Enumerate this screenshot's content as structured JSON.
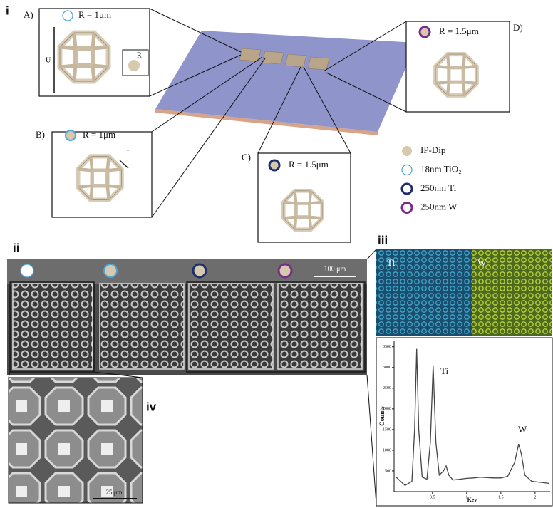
{
  "panel_i": {
    "label": "i",
    "insets": [
      {
        "letter": "A)",
        "radius": "R = 1μm"
      },
      {
        "letter": "B)",
        "radius": "R = 1μm"
      },
      {
        "letter": "C)",
        "radius": "R = 1.5μm"
      },
      {
        "letter": "D)",
        "radius": "R = 1.5μm"
      }
    ],
    "dimension_labels": [
      "U",
      "R",
      "L"
    ],
    "legend": [
      "IP-Dip",
      "18nm TiO₂",
      "250nm Ti",
      "250nm W"
    ]
  },
  "panel_ii": {
    "label": "ii",
    "scale_bar": "100 μm"
  },
  "panel_iii": {
    "label": "iii",
    "map_labels": [
      "Ti",
      "W"
    ]
  },
  "panel_iv": {
    "label": "iv",
    "scale_bar": "25 μm"
  },
  "chart_data": {
    "type": "line",
    "x_label": "Kev",
    "y_label": "Counts",
    "annotations": [
      "Ti",
      "W"
    ],
    "color": "#444444",
    "x": [
      -0.03,
      0.1,
      0.2,
      0.24,
      0.27,
      0.3,
      0.35,
      0.42,
      0.47,
      0.51,
      0.55,
      0.6,
      0.66,
      0.7,
      0.74,
      0.8,
      0.9,
      1.0,
      1.1,
      1.2,
      1.3,
      1.4,
      1.5,
      1.6,
      1.7,
      1.76,
      1.8,
      1.85,
      1.95,
      2.05,
      2.2
    ],
    "values": [
      350,
      150,
      250,
      1500,
      3450,
      1500,
      350,
      300,
      1200,
      3050,
      1200,
      400,
      500,
      620,
      400,
      280,
      300,
      320,
      330,
      350,
      340,
      330,
      330,
      370,
      700,
      1150,
      900,
      400,
      250,
      230,
      200
    ],
    "xlim": [
      -0.06,
      2.22
    ],
    "ylim": [
      0,
      3650
    ],
    "xticks": [
      0.5,
      1,
      1.5,
      2
    ],
    "yticks": [
      500,
      1000,
      1500,
      2000,
      2500,
      3000,
      3500
    ]
  }
}
